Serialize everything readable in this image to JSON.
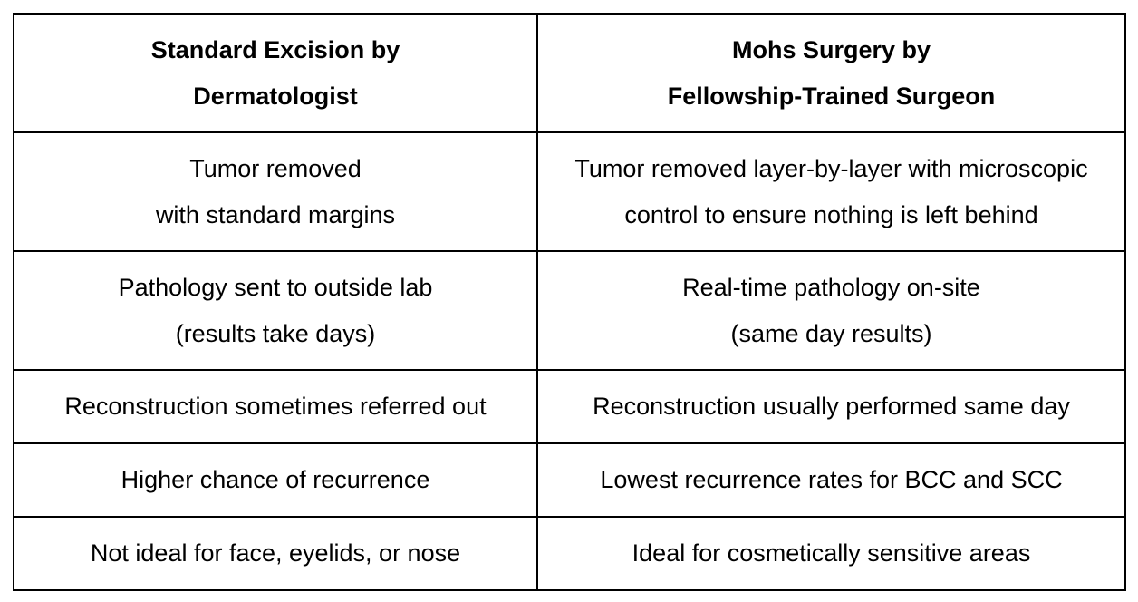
{
  "table": {
    "headers": [
      [
        "Standard Excision by",
        "Dermatologist"
      ],
      [
        "Mohs Surgery by",
        "Fellowship-Trained Surgeon"
      ]
    ],
    "rows": [
      {
        "left": [
          "Tumor removed",
          "with standard margins"
        ],
        "right": [
          "Tumor removed layer-by-layer with microscopic",
          "control to ensure nothing is left behind"
        ]
      },
      {
        "left": [
          "Pathology sent to outside lab",
          "(results take days)"
        ],
        "right": [
          "Real-time pathology on-site",
          "(same day results)"
        ]
      },
      {
        "left": [
          "Reconstruction sometimes referred out"
        ],
        "right": [
          "Reconstruction usually performed same day"
        ]
      },
      {
        "left": [
          "Higher chance of recurrence"
        ],
        "right": [
          "Lowest recurrence rates for BCC and SCC"
        ]
      },
      {
        "left": [
          "Not ideal for face, eyelids, or nose"
        ],
        "right": [
          "Ideal for cosmetically sensitive areas"
        ]
      }
    ]
  }
}
